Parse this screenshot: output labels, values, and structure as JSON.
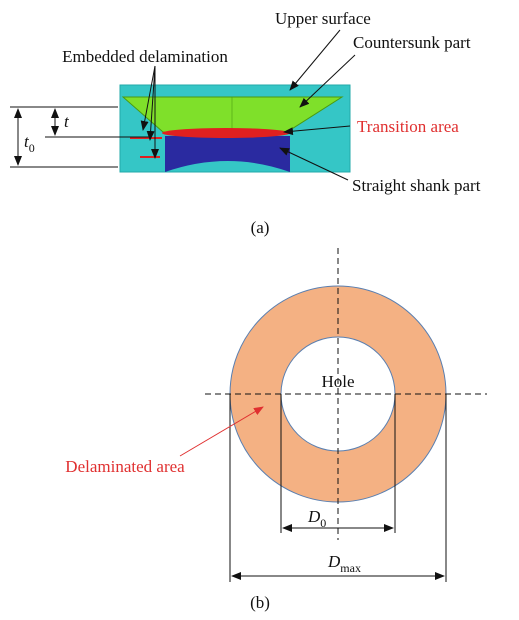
{
  "panel_a": {
    "caption": "(a)",
    "labels": {
      "embedded": "Embedded delamination",
      "upper": "Upper surface",
      "countersunk": "Countersunk part",
      "transition": "Transition area",
      "shank": "Straight shank part"
    },
    "t": "t",
    "t0": {
      "main": "t",
      "sub": "0"
    }
  },
  "panel_b": {
    "caption": "(b)",
    "hole": "Hole",
    "delaminated": "Delaminated area",
    "d0": {
      "main": "D",
      "sub": "0"
    },
    "dmax": {
      "main": "D",
      "sub": "max"
    }
  }
}
